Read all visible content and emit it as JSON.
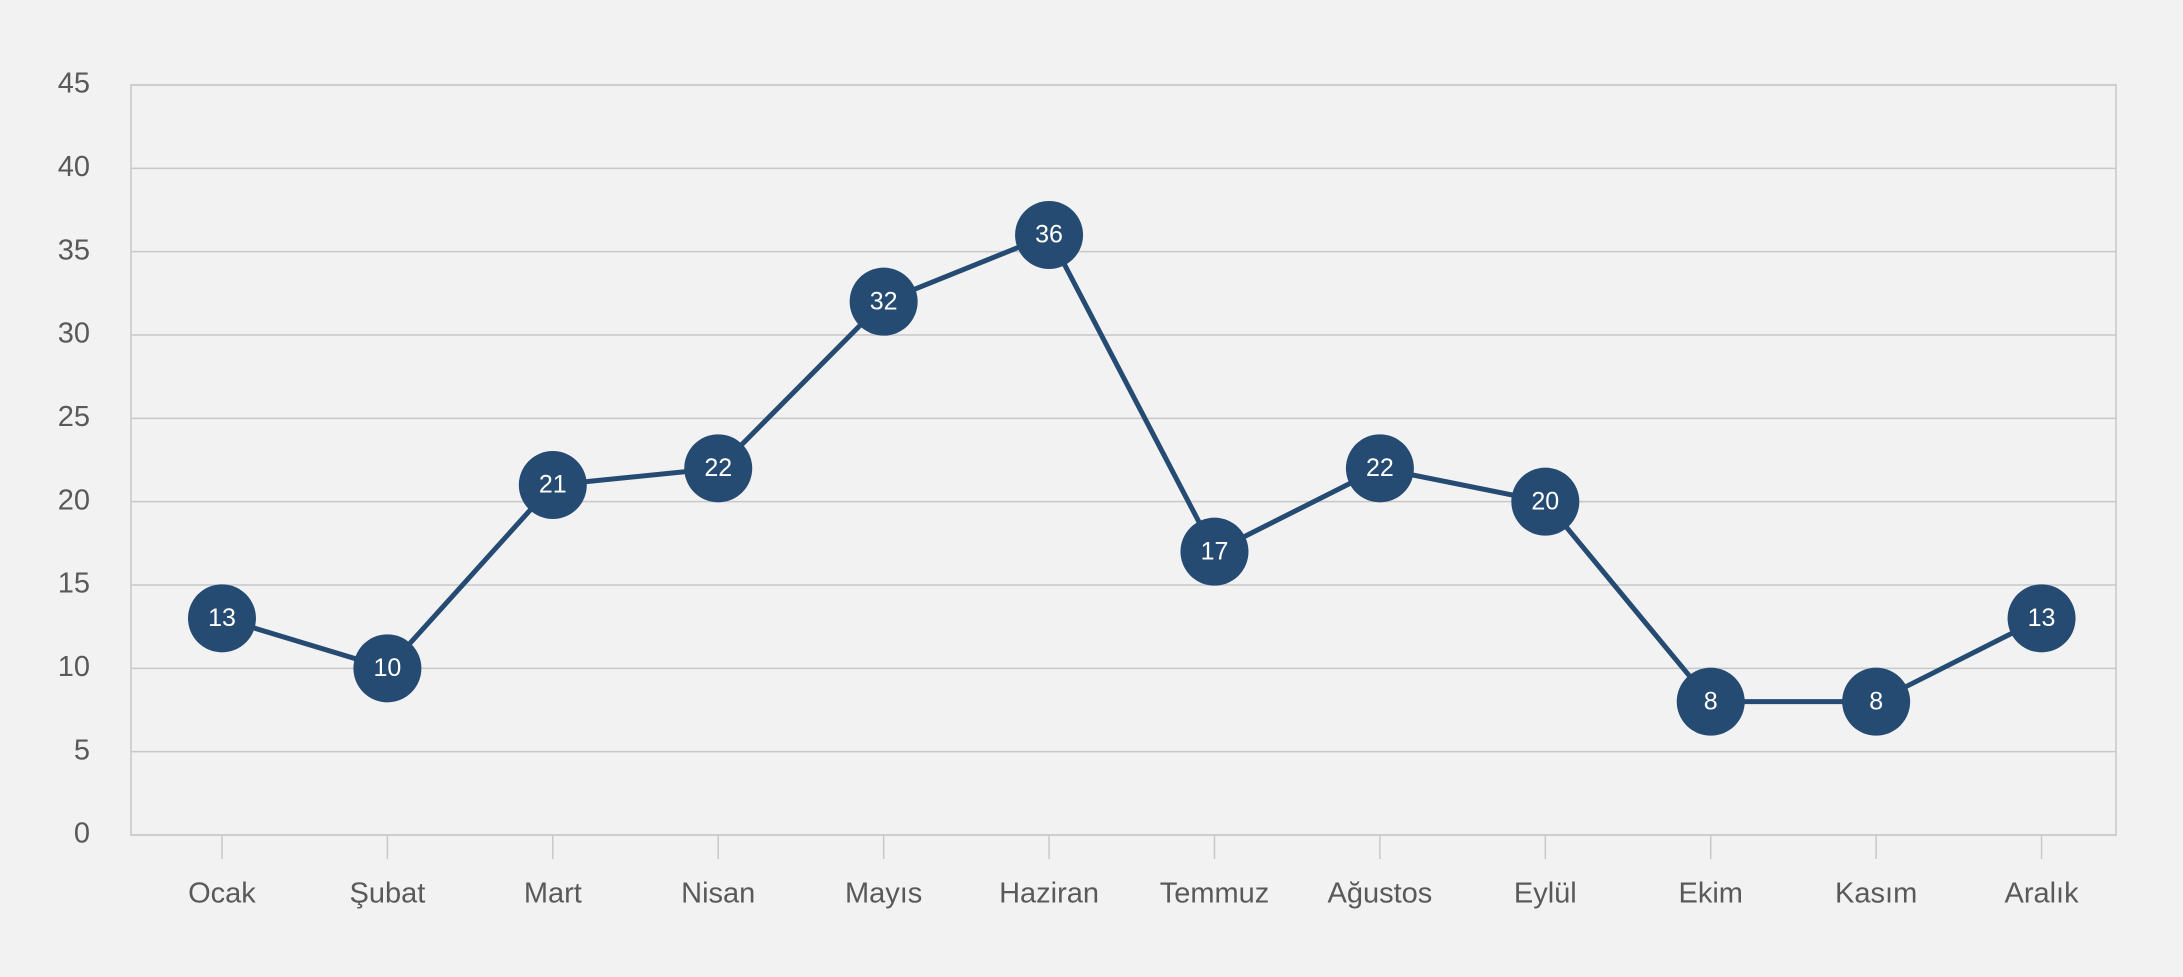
{
  "chart_data": {
    "type": "line",
    "categories": [
      "Ocak",
      "Şubat",
      "Mart",
      "Nisan",
      "Mayıs",
      "Haziran",
      "Temmuz",
      "Ağustos",
      "Eylül",
      "Ekim",
      "Kasım",
      "Aralık"
    ],
    "series": [
      {
        "color": "#264b72",
        "values": [
          13,
          10,
          21,
          22,
          32,
          36,
          17,
          22,
          20,
          8,
          8,
          13
        ]
      }
    ],
    "ylim": [
      0,
      45
    ],
    "yticks": [
      0,
      5,
      10,
      15,
      20,
      25,
      30,
      35,
      40,
      45
    ],
    "grid": true,
    "data_labels": true
  }
}
